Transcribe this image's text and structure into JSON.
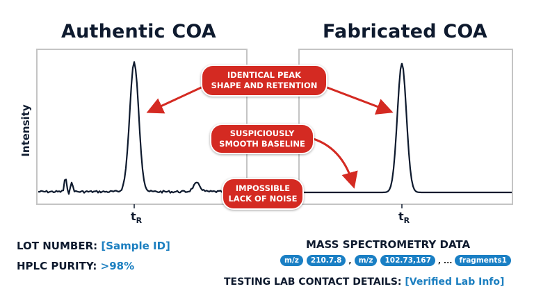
{
  "titles": {
    "left": "Authentic COA",
    "right": "Fabricated COA"
  },
  "axis": {
    "ylabel": "Intensity",
    "tick_left": "t",
    "tick_right": "t",
    "tick_sub": "R"
  },
  "callouts": {
    "peak_line1": "IDENTICAL PEAK",
    "peak_line2": "SHAPE AND RETENTION",
    "baseline_line1": "SUSPICIOUSLY",
    "baseline_line2": "SMOOTH BASELINE",
    "noise_line1": "IMPOSSIBLE",
    "noise_line2": "LACK OF NOISE"
  },
  "lot": {
    "label": "LOT NUMBER: ",
    "value": "[Sample ID]"
  },
  "hplc": {
    "label": "HPLC PURITY: ",
    "value": ">98%"
  },
  "mass_spec": {
    "title": "MASS SPECTROMETRY DATA",
    "pill1": "m/z",
    "val1": "210.7.8",
    "sep1": ",",
    "pill2": "m/z",
    "val2": "102.73,167",
    "sep2": ", ...",
    "pill3": "fragments1"
  },
  "lab": {
    "label": "TESTING LAB CONTACT DETAILS: ",
    "value": "[Verified Lab Info]"
  },
  "colors": {
    "accent": "#d42a22",
    "link": "#1c7fc0",
    "line": "#0e1a2e"
  }
}
